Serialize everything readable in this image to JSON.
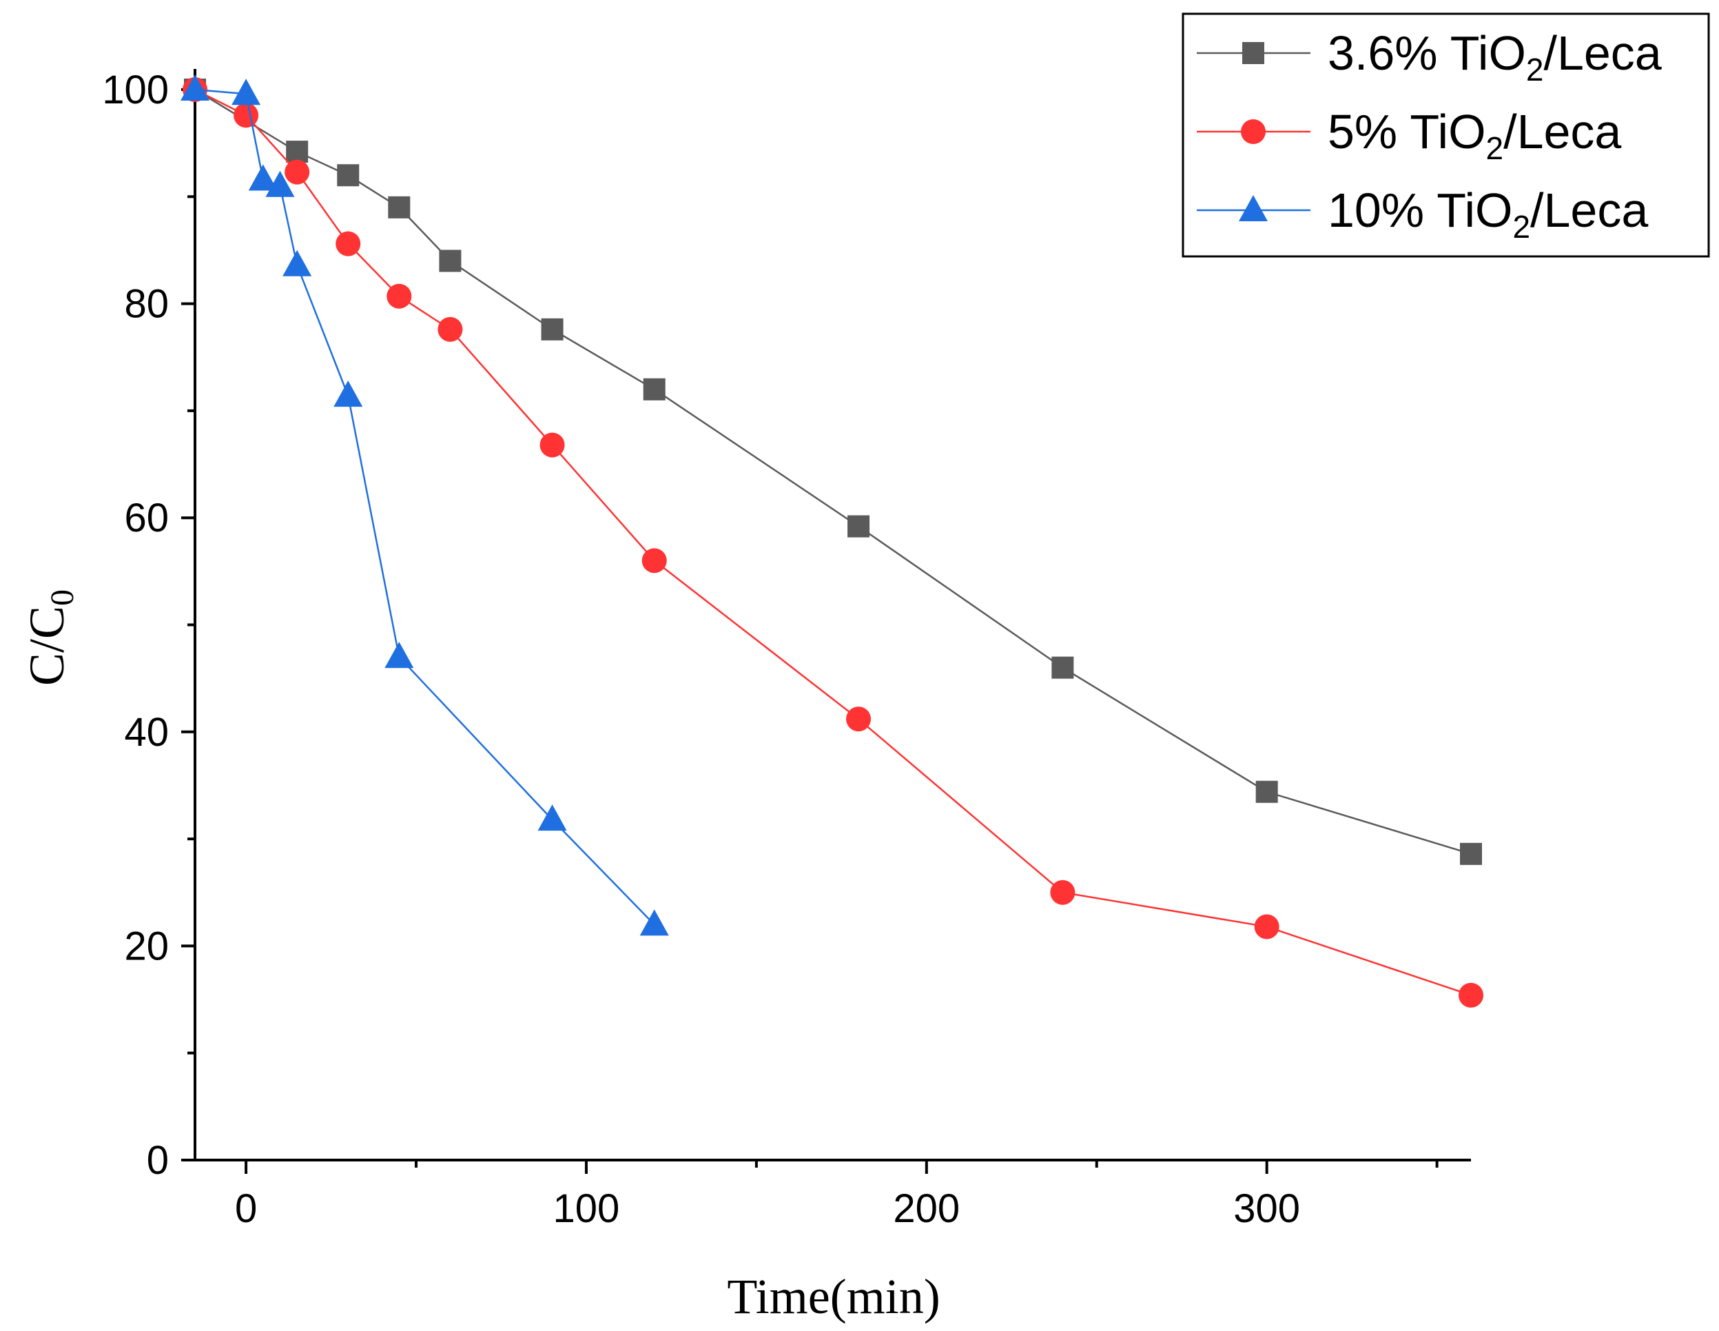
{
  "chart_data": {
    "type": "line",
    "title": "",
    "xlabel": "Time(min)",
    "ylabel": {
      "main": "C/C",
      "sub": "0"
    },
    "xlim": [
      -15,
      360
    ],
    "ylim": [
      0,
      100
    ],
    "x_ticks": [
      0,
      100,
      200,
      300
    ],
    "x_minor_ticks": [
      50,
      150,
      250,
      350
    ],
    "y_ticks": [
      0,
      20,
      40,
      60,
      80,
      100
    ],
    "y_minor_ticks": [
      10,
      30,
      50,
      70,
      90
    ],
    "grid": false,
    "legend_position": "top-right",
    "series": [
      {
        "name": "3.6% TiO2/Leca",
        "label_pre": "3.6% TiO",
        "label_sub": "2",
        "label_post": "/Leca",
        "color": "#5a5a5a",
        "marker": "square",
        "x": [
          -15,
          15,
          30,
          45,
          60,
          90,
          120,
          180,
          240,
          300,
          360
        ],
        "y": [
          100,
          94.2,
          92,
          89,
          84,
          77.6,
          72,
          59.2,
          46,
          34.4,
          28.6
        ]
      },
      {
        "name": "5% TiO2/Leca",
        "label_pre": "5% TiO",
        "label_sub": "2",
        "label_post": "/Leca",
        "color": "#ff3333",
        "marker": "circle",
        "x": [
          -15,
          0,
          15,
          30,
          45,
          60,
          90,
          120,
          180,
          240,
          300,
          360
        ],
        "y": [
          100,
          97.6,
          92.3,
          85.6,
          80.7,
          77.6,
          66.8,
          56,
          41.2,
          25,
          21.8,
          15.4
        ]
      },
      {
        "name": "10% TiO2/Leca",
        "label_pre": "10% TiO",
        "label_sub": "2",
        "label_post": "/Leca",
        "color": "#1f6fe0",
        "marker": "triangle",
        "x": [
          -15,
          0,
          5,
          10,
          15,
          30,
          45,
          90,
          120
        ],
        "y": [
          100,
          99.6,
          91.6,
          91,
          83.6,
          71.4,
          47,
          31.8,
          22
        ]
      }
    ]
  }
}
